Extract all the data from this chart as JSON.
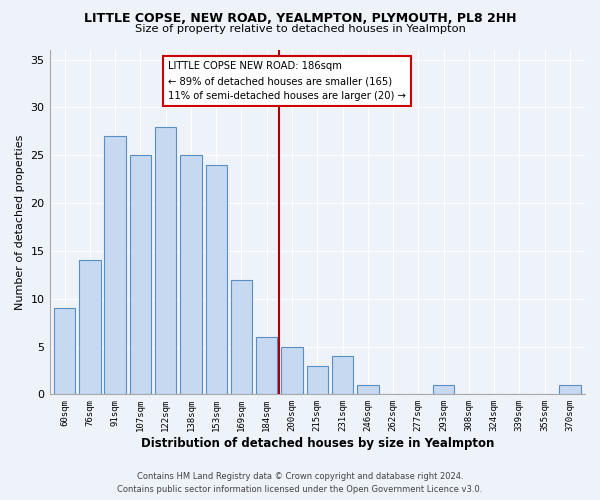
{
  "title": "LITTLE COPSE, NEW ROAD, YEALMPTON, PLYMOUTH, PL8 2HH",
  "subtitle": "Size of property relative to detached houses in Yealmpton",
  "xlabel": "Distribution of detached houses by size in Yealmpton",
  "ylabel": "Number of detached properties",
  "bar_labels": [
    "60sqm",
    "76sqm",
    "91sqm",
    "107sqm",
    "122sqm",
    "138sqm",
    "153sqm",
    "169sqm",
    "184sqm",
    "200sqm",
    "215sqm",
    "231sqm",
    "246sqm",
    "262sqm",
    "277sqm",
    "293sqm",
    "308sqm",
    "324sqm",
    "339sqm",
    "355sqm",
    "370sqm"
  ],
  "bar_heights": [
    9,
    14,
    27,
    25,
    28,
    25,
    24,
    12,
    6,
    5,
    3,
    4,
    1,
    0,
    0,
    1,
    0,
    0,
    0,
    0,
    1
  ],
  "bar_color": "#c6d9f1",
  "bar_edge_color": "#5a8fc3",
  "vline_x": 8.5,
  "vline_color": "#aa0000",
  "annotation_title": "LITTLE COPSE NEW ROAD: 186sqm",
  "annotation_line1": "← 89% of detached houses are smaller (165)",
  "annotation_line2": "11% of semi-detached houses are larger (20) →",
  "annotation_box_color": "#ffffff",
  "annotation_box_edge": "#cc0000",
  "ylim": [
    0,
    36
  ],
  "yticks": [
    0,
    5,
    10,
    15,
    20,
    25,
    30,
    35
  ],
  "footer1": "Contains HM Land Registry data © Crown copyright and database right 2024.",
  "footer2": "Contains public sector information licensed under the Open Government Licence v3.0.",
  "bg_color": "#eef2f9",
  "grid_color": "#ffffff"
}
